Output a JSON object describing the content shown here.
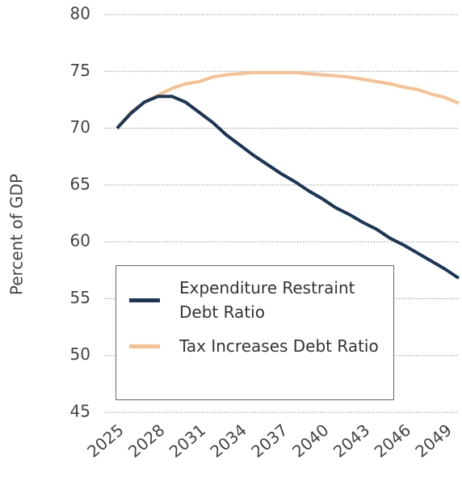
{
  "chart_data": {
    "type": "line",
    "y_label": "Percent of GDP",
    "x": [
      2025,
      2026,
      2027,
      2028,
      2029,
      2030,
      2031,
      2032,
      2033,
      2034,
      2035,
      2036,
      2037,
      2038,
      2039,
      2040,
      2041,
      2042,
      2043,
      2044,
      2045,
      2046,
      2047,
      2048,
      2049,
      2050
    ],
    "series": [
      {
        "name": "Expenditure Restraint Debt Ratio",
        "color": "#1c3657",
        "values": [
          70.0,
          71.3,
          72.3,
          72.8,
          72.8,
          72.3,
          71.4,
          70.5,
          69.4,
          68.5,
          67.6,
          66.8,
          66.0,
          65.3,
          64.5,
          63.8,
          63.0,
          62.4,
          61.7,
          61.1,
          60.3,
          59.7,
          59.0,
          58.3,
          57.6,
          56.8
        ]
      },
      {
        "name": "Tax Increases Debt Ratio",
        "color": "#f6c18f",
        "values": [
          70.0,
          71.4,
          72.3,
          72.9,
          73.5,
          73.9,
          74.1,
          74.5,
          74.7,
          74.8,
          74.9,
          74.9,
          74.9,
          74.9,
          74.8,
          74.7,
          74.6,
          74.5,
          74.3,
          74.1,
          73.9,
          73.6,
          73.4,
          73.0,
          72.7,
          72.2
        ]
      }
    ],
    "xlim": [
      2025,
      2050
    ],
    "xticks": [
      2025,
      2028,
      2031,
      2034,
      2037,
      2040,
      2043,
      2046,
      2049
    ],
    "ylim": [
      45,
      80
    ],
    "yticks": [
      45,
      50,
      55,
      60,
      65,
      70,
      75,
      80
    ],
    "grid": true,
    "legend": "lower-left"
  }
}
